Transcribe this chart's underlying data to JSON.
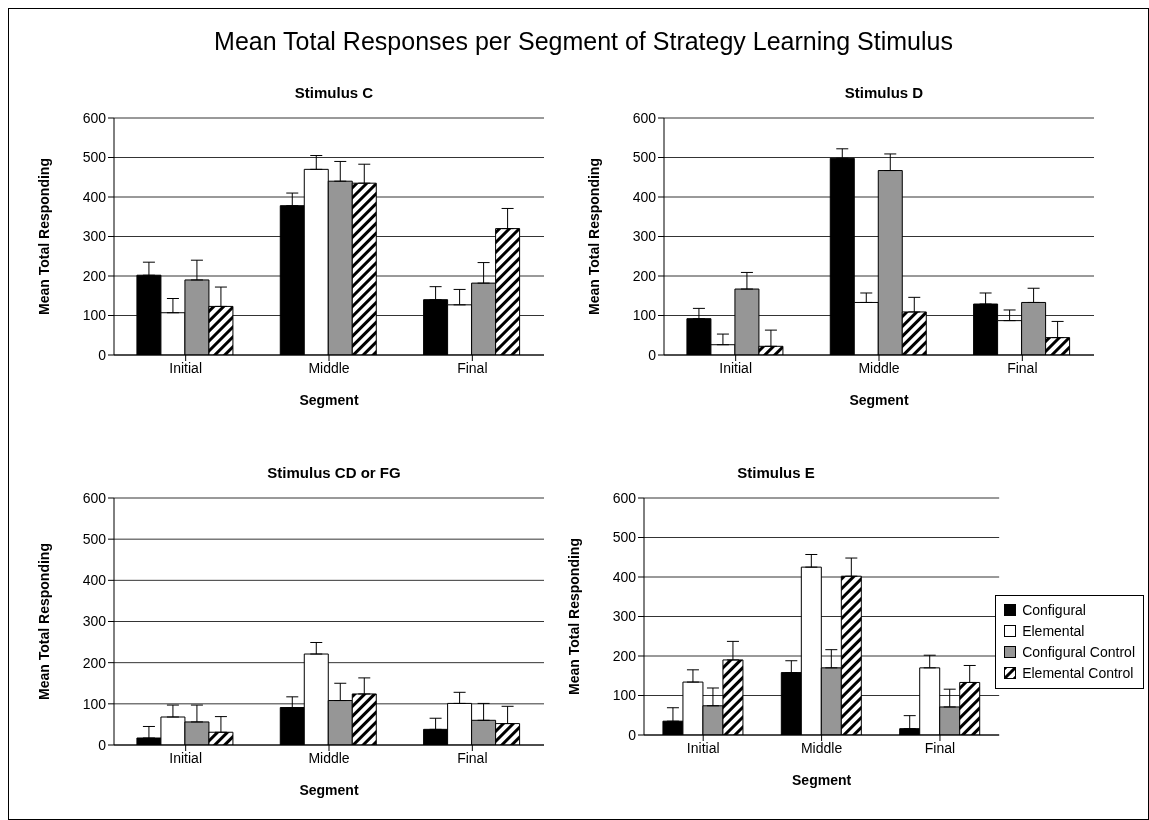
{
  "chart_data": [
    {
      "type": "other",
      "title": "Mean Total Responses per Segment of Strategy Learning Stimulus"
    },
    {
      "type": "bar",
      "title": "Stimulus C",
      "xlabel": "Segment",
      "ylabel": "Mean Total Responding",
      "categories": [
        "Initial",
        "Middle",
        "Final"
      ],
      "ylim": [
        0,
        600
      ],
      "yticks": [
        0,
        100,
        200,
        300,
        400,
        500,
        600
      ],
      "grid": "y",
      "legend": false,
      "series": [
        {
          "color": "#000000",
          "values": [
            202,
            378,
            140
          ],
          "errors": [
            [
              202,
              235
            ],
            [
              378,
              410
            ],
            [
              140,
              173
            ]
          ]
        },
        {
          "color": "#ffffff",
          "values": [
            107,
            470,
            127
          ],
          "errors": [
            [
              107,
              143
            ],
            [
              470,
              505
            ],
            [
              127,
              166
            ]
          ]
        },
        {
          "color": "#969696",
          "values": [
            190,
            440,
            182
          ],
          "errors": [
            [
              190,
              240
            ],
            [
              440,
              490
            ],
            [
              182,
              234
            ]
          ]
        },
        {
          "color": "#000000",
          "values": [
            123,
            435,
            320
          ],
          "errors": [
            [
              123,
              172
            ],
            [
              435,
              483
            ],
            [
              320,
              371
            ]
          ]
        }
      ]
    },
    {
      "type": "bar",
      "title": "Stimulus D",
      "xlabel": "Segment",
      "ylabel": "Mean Total Responding",
      "categories": [
        "Initial",
        "Middle",
        "Final"
      ],
      "ylim": [
        0,
        600
      ],
      "yticks": [
        0,
        100,
        200,
        300,
        400,
        500,
        600
      ],
      "grid": "y",
      "legend": false,
      "series": [
        {
          "color": "#000000",
          "values": [
            92,
            498,
            129
          ],
          "errors": [
            [
              92,
              118
            ],
            [
              498,
              522
            ],
            [
              129,
              157
            ]
          ]
        },
        {
          "color": "#ffffff",
          "values": [
            26,
            133,
            87
          ],
          "errors": [
            [
              26,
              53
            ],
            [
              133,
              157
            ],
            [
              87,
              114
            ]
          ]
        },
        {
          "color": "#969696",
          "values": [
            167,
            467,
            133
          ],
          "errors": [
            [
              167,
              209
            ],
            [
              467,
              509
            ],
            [
              133,
              169
            ]
          ]
        },
        {
          "color": "#000000",
          "values": [
            22,
            109,
            44
          ],
          "errors": [
            [
              22,
              63
            ],
            [
              109,
              146
            ],
            [
              44,
              85
            ]
          ]
        }
      ]
    },
    {
      "type": "bar",
      "title": "Stimulus CD or FG",
      "xlabel": "Segment",
      "ylabel": "Mean Total Responding",
      "categories": [
        "Initial",
        "Middle",
        "Final"
      ],
      "ylim": [
        0,
        600
      ],
      "yticks": [
        0,
        100,
        200,
        300,
        400,
        500,
        600
      ],
      "grid": "y",
      "legend": false,
      "series": [
        {
          "color": "#000000",
          "values": [
            17,
            91,
            38
          ],
          "errors": [
            [
              17,
              45
            ],
            [
              91,
              117
            ],
            [
              38,
              65
            ]
          ]
        },
        {
          "color": "#ffffff",
          "values": [
            68,
            221,
            101
          ],
          "errors": [
            [
              68,
              97
            ],
            [
              221,
              249
            ],
            [
              101,
              128
            ]
          ]
        },
        {
          "color": "#969696",
          "values": [
            56,
            108,
            60
          ],
          "errors": [
            [
              56,
              97
            ],
            [
              108,
              150
            ],
            [
              60,
              101
            ]
          ]
        },
        {
          "color": "#000000",
          "values": [
            31,
            124,
            52
          ],
          "errors": [
            [
              31,
              69
            ],
            [
              124,
              163
            ],
            [
              52,
              94
            ]
          ]
        }
      ]
    },
    {
      "type": "bar",
      "title": "Stimulus E",
      "xlabel": "Segment",
      "ylabel": "Mean Total Responding",
      "categories": [
        "Initial",
        "Middle",
        "Final"
      ],
      "ylim": [
        0,
        600
      ],
      "yticks": [
        0,
        100,
        200,
        300,
        400,
        500,
        600
      ],
      "grid": "y",
      "legend": "right",
      "series": [
        {
          "name": "Configural",
          "color": "#000000",
          "values": [
            35,
            158,
            16
          ],
          "errors": [
            [
              35,
              69
            ],
            [
              158,
              188
            ],
            [
              16,
              49
            ]
          ]
        },
        {
          "name": "Elemental",
          "color": "#ffffff",
          "values": [
            134,
            425,
            170
          ],
          "errors": [
            [
              134,
              165
            ],
            [
              425,
              457
            ],
            [
              170,
              202
            ]
          ]
        },
        {
          "name": "Configural Control",
          "color": "#969696",
          "values": [
            74,
            170,
            71
          ],
          "errors": [
            [
              74,
              119
            ],
            [
              170,
              216
            ],
            [
              71,
              116
            ]
          ]
        },
        {
          "name": "Elemental Control",
          "color": "#000000",
          "values": [
            190,
            402,
            133
          ],
          "errors": [
            [
              190,
              237
            ],
            [
              402,
              448
            ],
            [
              133,
              176
            ]
          ]
        }
      ]
    }
  ]
}
